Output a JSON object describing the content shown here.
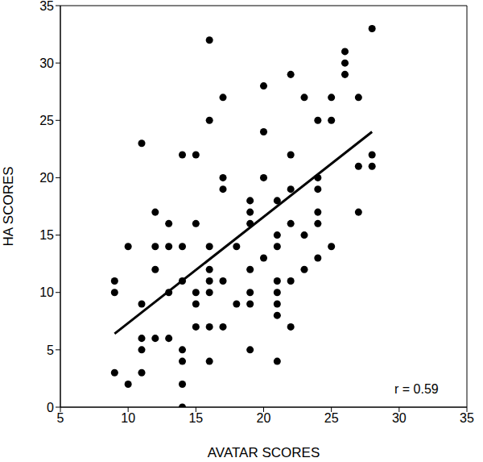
{
  "chart_data": {
    "type": "scatter",
    "x_label": "AVATAR SCORES",
    "y_label": "HA SCORES",
    "annotation": "r = 0.59",
    "xlim": [
      5,
      35
    ],
    "xticks": [
      5,
      10,
      15,
      20,
      25,
      30,
      35
    ],
    "ylim": [
      0,
      35
    ],
    "yticks": [
      0,
      5,
      10,
      15,
      20,
      25,
      30,
      35
    ],
    "grid": false,
    "color": "#000000",
    "marker": "circle",
    "x": [
      9,
      9,
      9,
      10,
      10,
      11,
      11,
      11,
      11,
      11,
      12,
      12,
      12,
      12,
      13,
      13,
      13,
      13,
      14,
      14,
      14,
      14,
      14,
      14,
      14,
      15,
      15,
      15,
      15,
      15,
      16,
      16,
      16,
      16,
      16,
      16,
      16,
      16,
      17,
      17,
      17,
      17,
      17,
      18,
      18,
      19,
      19,
      19,
      19,
      19,
      19,
      19,
      20,
      20,
      20,
      20,
      21,
      21,
      21,
      21,
      21,
      21,
      21,
      21,
      22,
      22,
      22,
      22,
      22,
      22,
      23,
      23,
      23,
      24,
      24,
      24,
      24,
      24,
      24,
      25,
      25,
      25,
      26,
      26,
      26,
      27,
      27,
      27,
      28,
      28,
      28
    ],
    "values": [
      11,
      10,
      3,
      14,
      2,
      23,
      9,
      6,
      5,
      3,
      17,
      14,
      12,
      6,
      16,
      14,
      10,
      6,
      22,
      14,
      11,
      5,
      4,
      2,
      0,
      22,
      16,
      10,
      9,
      7,
      32,
      25,
      14,
      12,
      11,
      10,
      7,
      4,
      27,
      20,
      19,
      11,
      7,
      14,
      9,
      18,
      17,
      16,
      12,
      10,
      9,
      5,
      28,
      24,
      20,
      13,
      18,
      15,
      14,
      11,
      10,
      9,
      8,
      4,
      29,
      22,
      19,
      16,
      11,
      7,
      27,
      15,
      12,
      25,
      20,
      19,
      17,
      16,
      13,
      27,
      25,
      14,
      31,
      30,
      29,
      27,
      21,
      17,
      33,
      22,
      21
    ],
    "trend_line": {
      "x": [
        9,
        28
      ],
      "y": [
        6.4,
        24
      ]
    }
  }
}
